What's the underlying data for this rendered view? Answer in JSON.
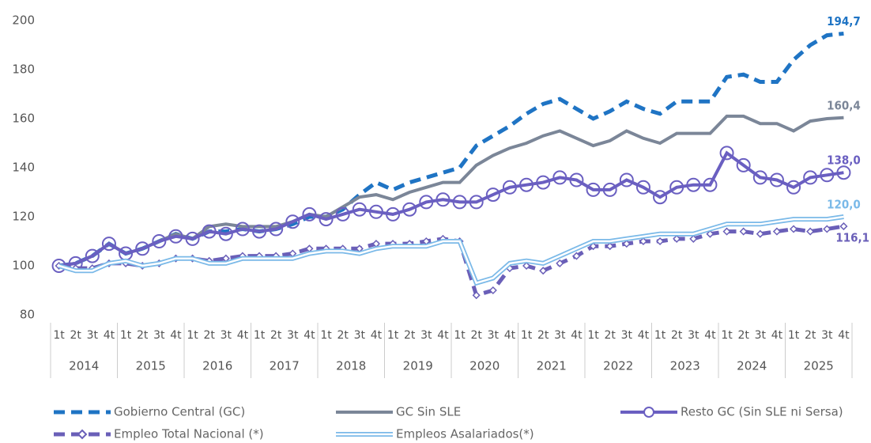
{
  "chart_data": {
    "type": "line",
    "categories": [
      "1t",
      "2t",
      "3t",
      "4t",
      "1t",
      "2t",
      "3t",
      "4t",
      "1t",
      "2t",
      "3t",
      "4t",
      "1t",
      "2t",
      "3t",
      "4t",
      "1t",
      "2t",
      "3t",
      "4t",
      "1t",
      "2t",
      "3t",
      "4t",
      "1t",
      "2t",
      "3t",
      "4t",
      "1t",
      "2t",
      "3t",
      "4t",
      "1t",
      "2t",
      "3t",
      "4t",
      "1t",
      "2t",
      "3t",
      "4t",
      "1t",
      "2t",
      "3t",
      "4t",
      "1t",
      "2t",
      "3t",
      "4t"
    ],
    "years": [
      "2014",
      "2015",
      "2016",
      "2017",
      "2018",
      "2019",
      "2020",
      "2021",
      "2022",
      "2023",
      "2024",
      "2025"
    ],
    "ylim": [
      80,
      200
    ],
    "yticks": [
      80,
      100,
      120,
      140,
      160,
      180,
      200
    ],
    "grid": false,
    "series": [
      {
        "name": "Gobierno Central (GC)",
        "color": "#1f74c4",
        "style": "dashed",
        "marker": null,
        "last_label": "194,7",
        "values": [
          100,
          101,
          104,
          109,
          105,
          107,
          110,
          113,
          111,
          114,
          114,
          115,
          114,
          115,
          117,
          120,
          120,
          123,
          129,
          134,
          131,
          134,
          136,
          138,
          140,
          149,
          153,
          157,
          162,
          166,
          168,
          164,
          160,
          163,
          167,
          164,
          162,
          167,
          167,
          167,
          177,
          178,
          175,
          175,
          184,
          190,
          194,
          194.7
        ]
      },
      {
        "name": "GC Sin SLE",
        "color": "#7b8698",
        "style": "solid",
        "marker": null,
        "last_label": "160,4",
        "values": [
          100,
          101,
          104,
          109,
          105,
          107,
          110,
          113,
          111,
          116,
          117,
          116,
          116,
          116,
          118,
          121,
          120,
          124,
          128,
          129,
          127,
          130,
          132,
          134,
          134,
          141,
          145,
          148,
          150,
          153,
          155,
          152,
          149,
          151,
          155,
          152,
          150,
          154,
          154,
          154,
          161,
          161,
          158,
          158,
          155,
          159,
          160,
          160.4
        ]
      },
      {
        "name": "Resto GC (Sin SLE ni Sersa)",
        "color": "#6a5fc1",
        "style": "solid",
        "marker": "circle",
        "last_label": "138,0",
        "values": [
          100,
          101,
          104,
          109,
          105,
          107,
          110,
          112,
          111,
          114,
          113,
          115,
          114,
          115,
          118,
          121,
          119,
          121,
          123,
          122,
          121,
          123,
          126,
          127,
          126,
          126,
          129,
          132,
          133,
          134,
          136,
          135,
          131,
          131,
          135,
          132,
          128,
          132,
          133,
          133,
          146,
          141,
          136,
          135,
          132,
          136,
          137,
          138.0
        ]
      },
      {
        "name": "Empleo Total Nacional (*)",
        "color": "#6a5fb8",
        "style": "dashed",
        "marker": "diamond",
        "last_label": "116,1",
        "values": [
          100,
          99,
          99,
          101,
          101,
          100,
          101,
          103,
          103,
          102,
          103,
          104,
          104,
          104,
          105,
          107,
          107,
          107,
          107,
          109,
          109,
          109,
          110,
          111,
          110,
          88,
          90,
          99,
          100,
          98,
          101,
          104,
          108,
          108,
          109,
          110,
          110,
          111,
          111,
          113,
          114,
          114,
          113,
          114,
          115,
          114,
          115,
          116.1
        ]
      },
      {
        "name": "Empleos Asalariados(*)",
        "color": "#7ab9e8",
        "style": "double",
        "marker": null,
        "last_label": "120,0",
        "values": [
          100,
          98,
          98,
          101,
          102,
          100,
          101,
          103,
          103,
          101,
          101,
          103,
          103,
          103,
          103,
          105,
          106,
          106,
          105,
          107,
          108,
          108,
          108,
          110,
          110,
          93,
          95,
          101,
          102,
          101,
          104,
          107,
          110,
          110,
          111,
          112,
          113,
          113,
          113,
          115,
          117,
          117,
          117,
          118,
          119,
          119,
          119,
          120.0
        ]
      }
    ]
  }
}
